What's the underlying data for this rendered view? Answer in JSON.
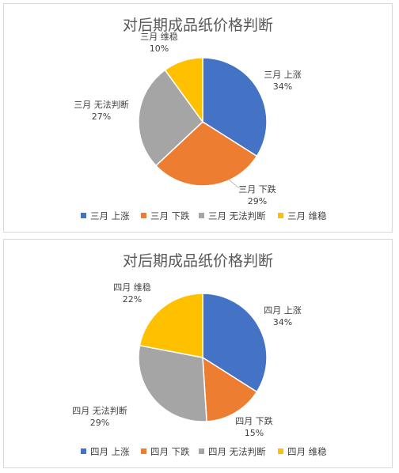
{
  "colors": {
    "up": "#4472C4",
    "down": "#ED7D31",
    "unsure": "#A5A5A5",
    "stable": "#FFC000"
  },
  "chart_data": [
    {
      "type": "pie",
      "title": "对后期成品纸价格判断",
      "categories": [
        "三月 上涨",
        "三月 下跌",
        "三月 无法判断",
        "三月 维稳"
      ],
      "values": [
        34,
        29,
        27,
        10
      ],
      "value_labels": [
        "34%",
        "29%",
        "27%",
        "10%"
      ],
      "legend_position": "bottom"
    },
    {
      "type": "pie",
      "title": "对后期成品纸价格判断",
      "categories": [
        "四月 上涨",
        "四月 下跌",
        "四月 无法判断",
        "四月 维稳"
      ],
      "values": [
        34,
        15,
        29,
        22
      ],
      "value_labels": [
        "34%",
        "15%",
        "29%",
        "22%"
      ],
      "legend_position": "bottom"
    }
  ]
}
